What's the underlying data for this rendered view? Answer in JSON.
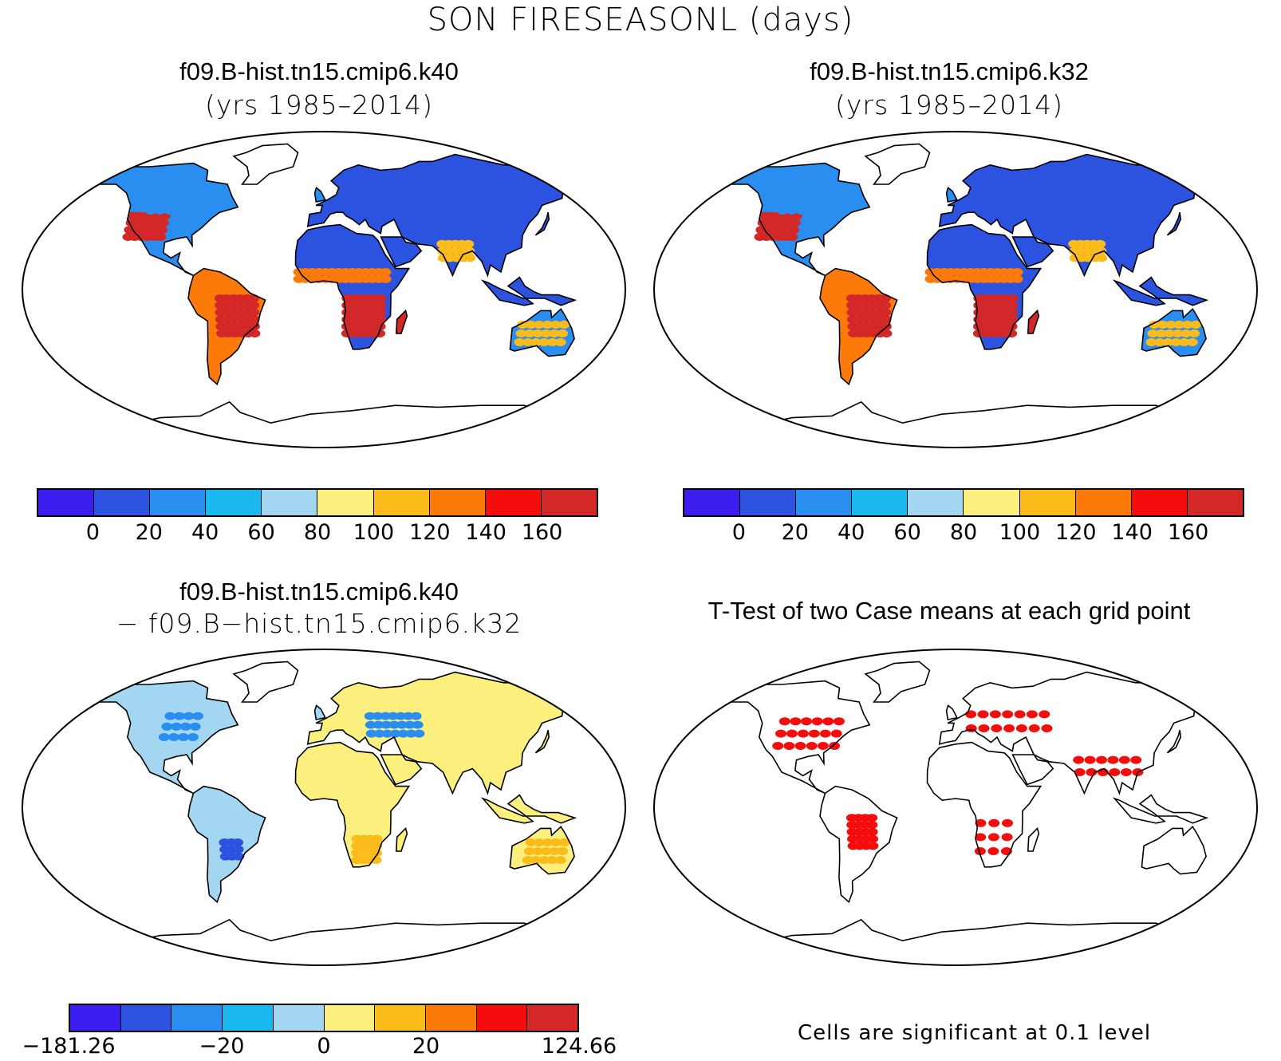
{
  "figure_title": "SON FIRESEASONL (days)",
  "panels": [
    {
      "title": "f09.B-hist.tn15.cmip6.k40",
      "subtitle": "(yrs 1985–2014)",
      "field": "absolute"
    },
    {
      "title": "f09.B-hist.tn15.cmip6.k32",
      "subtitle": "(yrs 1985–2014)",
      "field": "absolute"
    },
    {
      "title": "f09.B-hist.tn15.cmip6.k40",
      "subtitle": "− f09.B−hist.tn15.cmip6.k32",
      "field": "difference"
    },
    {
      "title": "T-Test of two Case means at each grid point",
      "subtitle": "",
      "field": "significance"
    }
  ],
  "colorbars": {
    "absolute": {
      "colors": [
        "#3a1ef0",
        "#2b53e0",
        "#2a8ef0",
        "#19b9f0",
        "#a3d6f0",
        "#fbf07e",
        "#fbbb1a",
        "#fb7a0a",
        "#f50c0c",
        "#d42828"
      ],
      "tick_labels": [
        "0",
        "20",
        "40",
        "60",
        "80",
        "100",
        "120",
        "140",
        "160"
      ]
    },
    "difference": {
      "colors": [
        "#3a1ef0",
        "#2b53e0",
        "#2a8ef0",
        "#19b9f0",
        "#a3d6f0",
        "#fbf07e",
        "#fbbb1a",
        "#fb7a0a",
        "#f50c0c",
        "#d42828"
      ],
      "tick_labels": [
        "−181.26",
        "−20",
        "0",
        "20",
        "124.66"
      ]
    }
  },
  "significance_note": "Cells are significant at 0.1 level",
  "colors": {
    "land_absolute_dry": "#2b53e0",
    "land_absolute_hot": "#d42828",
    "land_difference": "#fbf07e",
    "significant": "#f50c0c"
  }
}
